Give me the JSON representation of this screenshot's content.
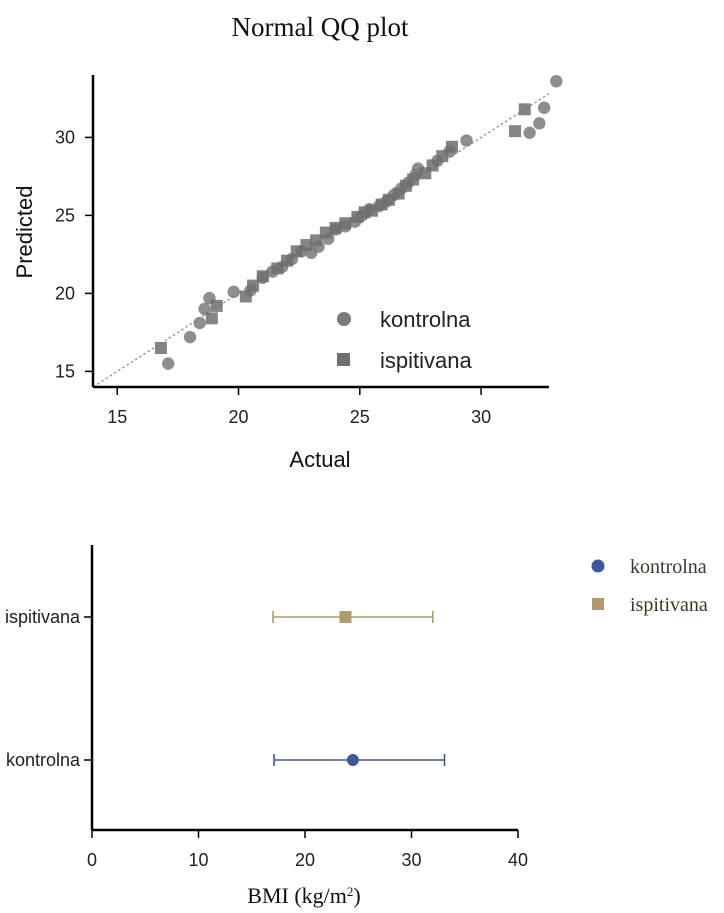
{
  "chart_data": [
    {
      "type": "scatter",
      "title": "Normal QQ plot",
      "xlabel": "Actual",
      "ylabel": "Predicted",
      "xlim": [
        14,
        32.8
      ],
      "ylim": [
        14,
        34
      ],
      "xticks": [
        15,
        20,
        25,
        30
      ],
      "yticks": [
        15,
        20,
        25,
        30
      ],
      "reference_line": "y = x",
      "legend_position": "inside-bottom-right",
      "series": [
        {
          "name": "kontrolna",
          "marker": "circle",
          "color": "#7a7a7a",
          "points": [
            [
              17.1,
              15.5
            ],
            [
              18.0,
              17.2
            ],
            [
              18.4,
              18.1
            ],
            [
              18.8,
              19.7
            ],
            [
              18.6,
              19.0
            ],
            [
              19.8,
              20.1
            ],
            [
              20.5,
              20.2
            ],
            [
              21.0,
              21.0
            ],
            [
              21.4,
              21.4
            ],
            [
              21.8,
              21.7
            ],
            [
              22.2,
              22.2
            ],
            [
              22.6,
              22.7
            ],
            [
              23.0,
              22.6
            ],
            [
              23.3,
              23.0
            ],
            [
              23.7,
              23.5
            ],
            [
              24.0,
              24.1
            ],
            [
              24.4,
              24.3
            ],
            [
              24.8,
              24.6
            ],
            [
              25.1,
              25.0
            ],
            [
              25.4,
              25.4
            ],
            [
              25.8,
              25.6
            ],
            [
              26.1,
              25.9
            ],
            [
              26.4,
              26.3
            ],
            [
              26.7,
              26.7
            ],
            [
              27.0,
              27.1
            ],
            [
              27.3,
              27.6
            ],
            [
              27.4,
              28.0
            ],
            [
              28.2,
              28.5
            ],
            [
              28.7,
              29.1
            ],
            [
              29.4,
              29.8
            ],
            [
              32.0,
              30.3
            ],
            [
              32.4,
              30.9
            ],
            [
              32.6,
              31.9
            ],
            [
              33.1,
              33.6
            ]
          ]
        },
        {
          "name": "ispitivana",
          "marker": "square",
          "color": "#6f6f6f",
          "points": [
            [
              16.8,
              16.5
            ],
            [
              18.9,
              18.4
            ],
            [
              19.1,
              19.2
            ],
            [
              20.3,
              19.8
            ],
            [
              20.6,
              20.5
            ],
            [
              21.0,
              21.1
            ],
            [
              21.6,
              21.6
            ],
            [
              22.0,
              22.1
            ],
            [
              22.4,
              22.7
            ],
            [
              22.8,
              23.1
            ],
            [
              23.2,
              23.4
            ],
            [
              23.6,
              23.9
            ],
            [
              24.0,
              24.2
            ],
            [
              24.4,
              24.5
            ],
            [
              24.9,
              24.9
            ],
            [
              25.2,
              25.2
            ],
            [
              25.5,
              25.3
            ],
            [
              25.9,
              25.7
            ],
            [
              26.2,
              26.0
            ],
            [
              26.6,
              26.4
            ],
            [
              26.9,
              26.9
            ],
            [
              27.2,
              27.3
            ],
            [
              27.7,
              27.7
            ],
            [
              28.0,
              28.2
            ],
            [
              28.4,
              28.8
            ],
            [
              28.8,
              29.4
            ],
            [
              31.4,
              30.4
            ],
            [
              31.8,
              31.8
            ]
          ]
        }
      ]
    },
    {
      "type": "errorbar",
      "title": "",
      "xlabel": "BMI (kg/m",
      "xlabel_sup": "2",
      "xlabel_end": ")",
      "xlim": [
        0,
        40
      ],
      "xticks": [
        0,
        10,
        20,
        30,
        40
      ],
      "categories": [
        "ispitivana",
        "kontrolna"
      ],
      "legend_position": "top-right-outside",
      "series": [
        {
          "name": "ispitivana",
          "marker": "square",
          "color": "#b39a6e",
          "mean": 23.8,
          "low": 17.0,
          "high": 32.0
        },
        {
          "name": "kontrolna",
          "marker": "circle",
          "color": "#3a5a9c",
          "mean": 24.5,
          "low": 17.1,
          "high": 33.1
        }
      ]
    }
  ]
}
